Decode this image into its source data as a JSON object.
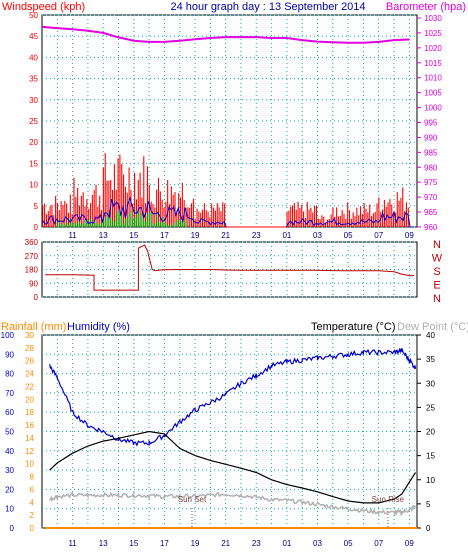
{
  "header": {
    "wind_title": "Windspeed (kph)",
    "date_title": "24 hour graph day : 13 September 2014",
    "baro_title": "Barometer (hpa)"
  },
  "colors": {
    "wind": "#ff0000",
    "wind_dir": "#c00000",
    "baro": "#e000e0",
    "gust": "#ff0000",
    "avg_wind": "#0000cc",
    "calm": "#00aa00",
    "humidity": "#0000cc",
    "temperature": "#000000",
    "dewpoint": "#b0b0b0",
    "rain": "#ff8c00",
    "axis_cyan": "#00aacc",
    "grid": "#00b0b0",
    "event": "#804040"
  },
  "time_axis": [
    "11",
    "13",
    "15",
    "17",
    "19",
    "21",
    "23",
    "01",
    "03",
    "05",
    "07",
    "09"
  ],
  "chart_data": [
    {
      "type": "line",
      "name": "wind-barometer",
      "title": "24 hour graph day : 13 September 2014",
      "ylabel_left": "Windspeed (kph)",
      "ylabel_right": "Barometer (hpa)",
      "y_left_ticks": [
        0,
        5,
        10,
        15,
        20,
        25,
        30,
        35,
        40,
        45,
        50
      ],
      "y_right_ticks": [
        960,
        965,
        970,
        975,
        980,
        985,
        990,
        995,
        1000,
        1005,
        1010,
        1015,
        1020,
        1025,
        1030
      ],
      "ylim_left": [
        0,
        50
      ],
      "ylim_right": [
        960,
        1031
      ],
      "xlim_hours": [
        9,
        33.5
      ],
      "grid": true,
      "series": [
        {
          "key": "barometer",
          "axis": "right",
          "x": [
            9,
            10,
            11,
            12,
            13,
            14,
            15,
            16,
            17,
            18,
            19,
            20,
            21,
            22,
            23,
            24,
            25,
            26,
            27,
            28,
            29,
            30,
            31,
            32,
            33
          ],
          "y": [
            1027,
            1026.6,
            1026.2,
            1025.7,
            1025,
            1023.5,
            1022.4,
            1022,
            1022,
            1022.4,
            1022.9,
            1023.3,
            1023.6,
            1023.6,
            1023.6,
            1023.3,
            1023.3,
            1022.6,
            1022.1,
            1021.9,
            1021.7,
            1021.7,
            1022,
            1022.6,
            1022.8
          ]
        }
      ],
      "wind_pattern": {
        "gust_max_kph": [
          [
            9,
            11,
            8
          ],
          [
            11,
            13,
            12
          ],
          [
            13,
            16,
            18
          ],
          [
            16,
            19,
            13
          ],
          [
            19,
            21,
            6
          ],
          [
            21,
            25,
            0
          ],
          [
            25,
            27,
            6
          ],
          [
            27,
            28,
            3
          ],
          [
            28,
            31,
            6
          ],
          [
            31,
            33,
            10
          ]
        ],
        "avg_max_kph": [
          [
            9,
            13,
            3
          ],
          [
            13,
            16,
            7
          ],
          [
            16,
            19,
            5
          ],
          [
            19,
            21,
            2
          ],
          [
            21,
            25,
            0
          ],
          [
            25,
            28,
            2
          ],
          [
            28,
            31,
            2
          ],
          [
            31,
            33,
            4
          ]
        ],
        "calm_max_kph": [
          [
            10,
            13,
            2
          ],
          [
            13,
            17,
            4
          ],
          [
            17,
            18.5,
            2
          ]
        ]
      }
    },
    {
      "type": "line",
      "name": "wind-direction",
      "y_ticks": [
        0,
        90,
        180,
        270,
        360
      ],
      "compass_labels": [
        "N",
        "W",
        "S",
        "E",
        "N"
      ],
      "ylim": [
        0,
        360
      ],
      "xlim_hours": [
        9,
        33.5
      ],
      "series": [
        {
          "key": "direction",
          "x": [
            9.2,
            11,
            12.4,
            12.4,
            15.3,
            15.3,
            15.7,
            15.9,
            16.2,
            16.4,
            16.6,
            17,
            18,
            19,
            20,
            21,
            22,
            23,
            24,
            25,
            26,
            27,
            28,
            29,
            30,
            31,
            32,
            32.5,
            33,
            33.3
          ],
          "y": [
            145,
            145,
            143,
            45,
            45,
            320,
            340,
            300,
            180,
            172,
            175,
            178,
            180,
            180,
            180,
            177,
            175,
            175,
            175,
            175,
            175,
            175,
            173,
            172,
            172,
            172,
            165,
            150,
            140,
            140
          ]
        }
      ]
    },
    {
      "type": "line",
      "name": "rain-humidity-temperature",
      "rain_label": "Rainfall (mm)",
      "humidity_label": "Humidity (%)",
      "temperature_label": "Temperature (°C)",
      "dewpoint_label": "Dew Point (°C)",
      "humidity_ticks": [
        0,
        10,
        20,
        30,
        40,
        50,
        60,
        70,
        80,
        90,
        100
      ],
      "rain_ticks": [
        0,
        2,
        4,
        6,
        8,
        10,
        12,
        14,
        16,
        18,
        20,
        22,
        24,
        26,
        28,
        30
      ],
      "temperature_ticks": [
        0,
        5,
        10,
        15,
        20,
        25,
        30,
        35,
        40
      ],
      "ylim_humidity": [
        0,
        100
      ],
      "ylim_temperature": [
        0,
        40
      ],
      "xlim_hours": [
        9,
        33.5
      ],
      "events": [
        {
          "label": "Sun Set",
          "hour": 18.8
        },
        {
          "label": "Sun Rise",
          "hour": 31.6
        }
      ],
      "series": [
        {
          "key": "humidity",
          "x": [
            9.5,
            10,
            11,
            12,
            13,
            14,
            15,
            16,
            17,
            18,
            19,
            20,
            21,
            22,
            23,
            24,
            25,
            26,
            27,
            28,
            29,
            30,
            31,
            32,
            32.5,
            33,
            33.4
          ],
          "y": [
            84,
            78,
            60,
            53,
            50,
            46,
            44,
            44,
            48,
            55,
            61,
            65,
            69,
            75,
            79,
            84,
            86,
            87,
            88,
            89,
            90,
            91,
            91,
            91,
            92,
            87,
            83
          ]
        },
        {
          "key": "temperature",
          "x": [
            9.5,
            10,
            11,
            12,
            13,
            14,
            15,
            16,
            17,
            18,
            19,
            20,
            21,
            22,
            23,
            24,
            25,
            26,
            27,
            28,
            29,
            30,
            31,
            32,
            32.5,
            33,
            33.4
          ],
          "y": [
            12,
            13.5,
            15.5,
            17,
            18,
            18.6,
            19.3,
            20,
            19.5,
            16.5,
            15,
            14,
            13.2,
            12.4,
            11.5,
            10,
            9,
            8.3,
            7.5,
            6.5,
            5.6,
            5.2,
            5.2,
            6,
            7,
            9.5,
            11.5
          ]
        },
        {
          "key": "dewpoint",
          "x": [
            9.5,
            10,
            11,
            12,
            13,
            14,
            15,
            16,
            17,
            18,
            19,
            20,
            21,
            22,
            23,
            24,
            25,
            26,
            27,
            28,
            29,
            30,
            31,
            32,
            32.5,
            33,
            33.4
          ],
          "y": [
            6,
            6.5,
            6.8,
            6.8,
            6.8,
            6.8,
            6.8,
            6.7,
            6.5,
            6.6,
            6.6,
            6.8,
            7,
            6.8,
            6.4,
            5.9,
            5.7,
            5.3,
            4.9,
            4.4,
            4,
            3.6,
            3.3,
            3.2,
            3.3,
            3.7,
            4.5
          ]
        },
        {
          "key": "rainfall",
          "x": [
            9.2,
            33.5
          ],
          "y": [
            0,
            0
          ]
        }
      ]
    }
  ]
}
